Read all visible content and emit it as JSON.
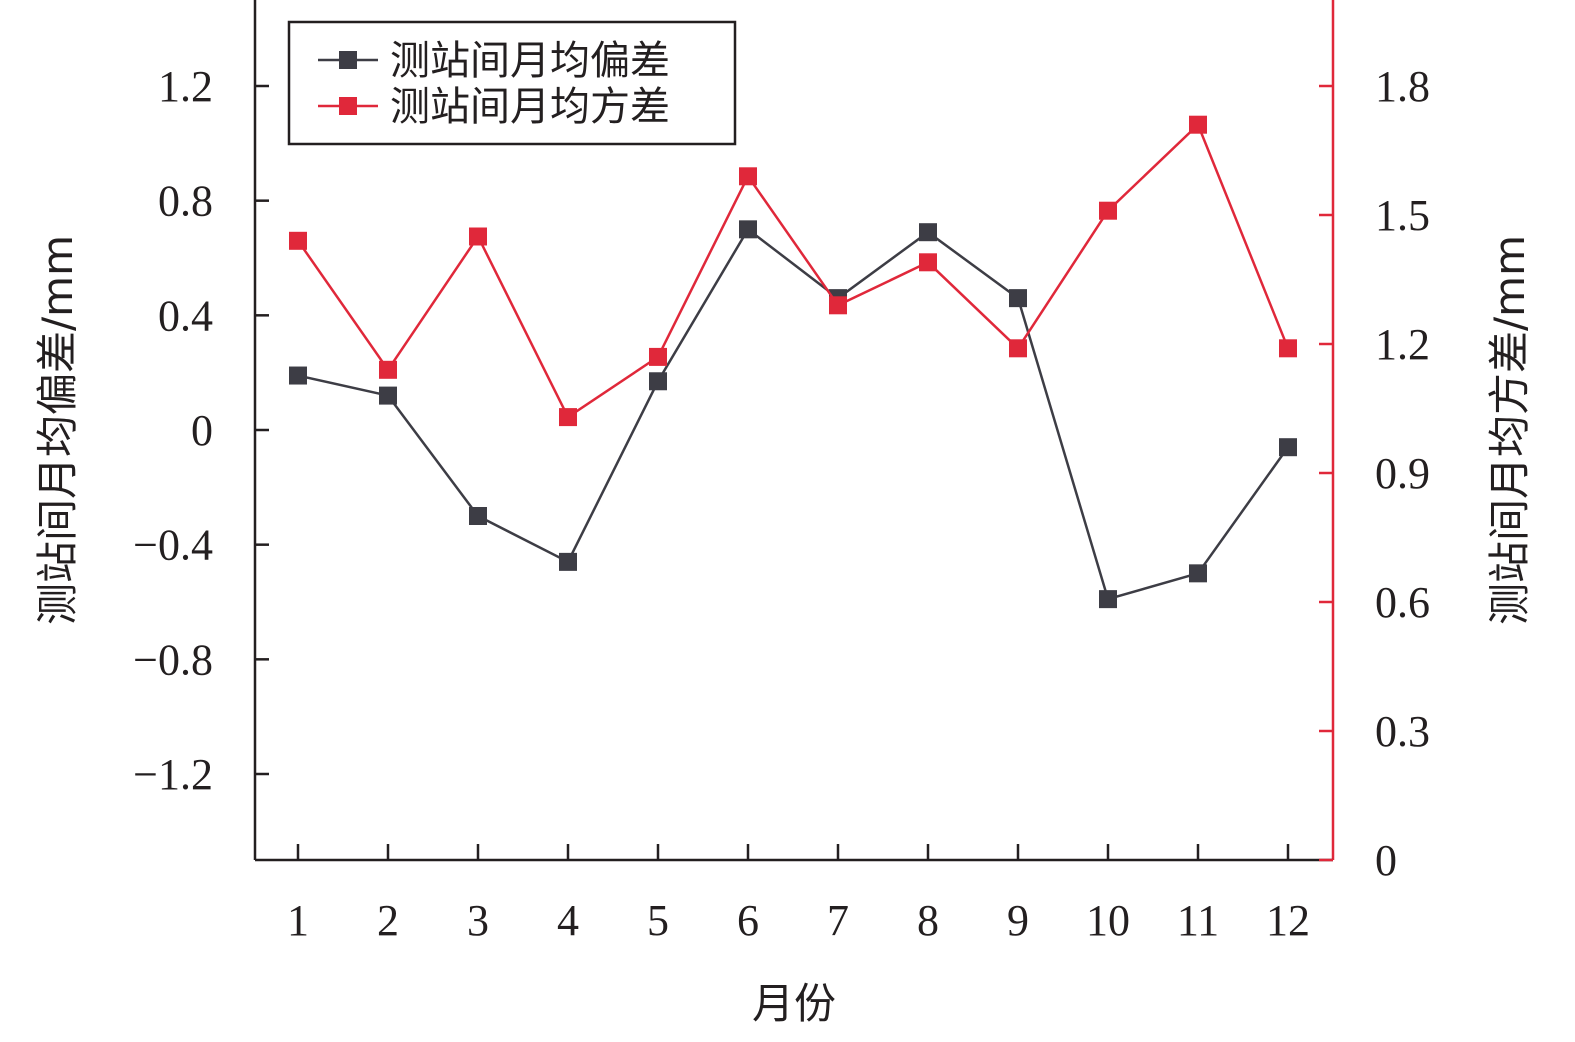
{
  "chart_data": {
    "type": "line",
    "categories": [
      "1",
      "2",
      "3",
      "4",
      "5",
      "6",
      "7",
      "8",
      "9",
      "10",
      "11",
      "12"
    ],
    "xlabel": "月份",
    "ylabel_left": "测站间月均偏差/mm",
    "ylabel_right": "测站间月均方差/mm",
    "ylim_left": [
      -1.5,
      1.5
    ],
    "ylim_right": [
      0,
      2.0
    ],
    "yticks_left": [
      "1.2",
      "0.8",
      "0.4",
      "0",
      "−0.4",
      "−0.8",
      "−1.2"
    ],
    "ytick_values_left": [
      1.2,
      0.8,
      0.4,
      0,
      -0.4,
      -0.8,
      -1.2
    ],
    "yticks_right": [
      "1.8",
      "1.5",
      "1.2",
      "0.9",
      "0.6",
      "0.3",
      "0"
    ],
    "ytick_values_right": [
      1.8,
      1.5,
      1.2,
      0.9,
      0.6,
      0.3,
      0
    ],
    "grid": false,
    "legend_position": "top-left",
    "series": [
      {
        "name": "测站间月均偏差",
        "axis": "left",
        "color": "#3d3d45",
        "values": [
          0.19,
          0.12,
          -0.3,
          -0.46,
          0.17,
          0.7,
          0.46,
          0.69,
          0.46,
          -0.59,
          -0.5,
          -0.06
        ]
      },
      {
        "name": "测站间月均方差",
        "axis": "right",
        "color": "#e0283a",
        "values": [
          1.44,
          1.14,
          1.45,
          1.03,
          1.17,
          1.59,
          1.29,
          1.39,
          1.19,
          1.51,
          1.71,
          1.19
        ]
      }
    ]
  }
}
